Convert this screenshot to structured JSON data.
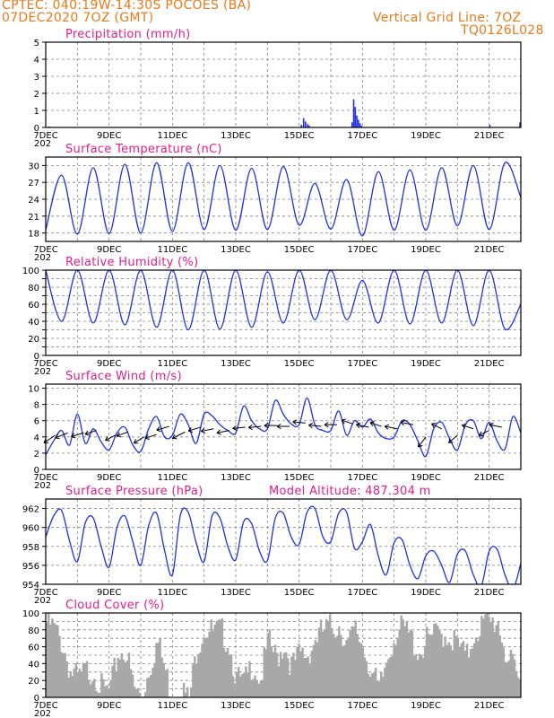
{
  "header": {
    "line1": "CPTEC:   040:19W-14:30S   POCOES (BA)",
    "line2": "07DEC2020 7OZ (GMT)",
    "right1": "Vertical Grid Line: 7OZ",
    "right2": "TQ0126L028"
  },
  "colors": {
    "header": "#e87a1a",
    "titles": "#e01e8c",
    "line": "#2030e0",
    "cloud": "#a8a8a8",
    "arrows": "#000000"
  },
  "x_labels": [
    "7DEC",
    "9DEC",
    "11DEC",
    "13DEC",
    "15DEC",
    "17DEC",
    "19DEC",
    "21DEC"
  ],
  "x_label_cut": "202",
  "chart_data": [
    {
      "type": "bar",
      "title": "Precipitation (mm/h)",
      "x_range": [
        0,
        15
      ],
      "ylim": [
        0,
        5
      ],
      "yticks": [
        0,
        1,
        2,
        3,
        4,
        5
      ],
      "grid": true,
      "bars": [
        {
          "x": 0.1,
          "v": 0.05
        },
        {
          "x": 8.05,
          "v": 0.15
        },
        {
          "x": 8.12,
          "v": 0.55
        },
        {
          "x": 8.18,
          "v": 0.35
        },
        {
          "x": 8.25,
          "v": 0.2
        },
        {
          "x": 8.3,
          "v": 0.1
        },
        {
          "x": 9.65,
          "v": 0.3
        },
        {
          "x": 9.7,
          "v": 1.65
        },
        {
          "x": 9.75,
          "v": 1.2
        },
        {
          "x": 9.8,
          "v": 0.7
        },
        {
          "x": 9.85,
          "v": 0.45
        },
        {
          "x": 9.9,
          "v": 0.25
        },
        {
          "x": 9.95,
          "v": 0.1
        },
        {
          "x": 14.0,
          "v": 0.15
        },
        {
          "x": 14.95,
          "v": 0.3
        }
      ]
    },
    {
      "type": "line",
      "title": "Surface Temperature (nC)",
      "x_range": [
        0,
        15
      ],
      "ylim": [
        16.5,
        31.5
      ],
      "yticks": [
        18,
        21,
        24,
        27,
        30
      ],
      "grid": true,
      "series": [
        {
          "x": [
            0,
            0.5,
            1.0,
            1.5,
            2.0,
            2.5,
            3.0,
            3.5,
            4.0,
            4.5,
            5.0,
            5.5,
            6.0,
            6.5,
            7.0,
            7.5,
            8.0,
            8.5,
            9.0,
            9.5,
            10.0,
            10.5,
            11.0,
            11.5,
            12.0,
            12.5,
            13.0,
            13.5,
            14.0,
            14.5,
            15.0
          ],
          "y": [
            18.5,
            28.3,
            17.8,
            29.6,
            17.9,
            30.2,
            18.0,
            30.5,
            18.3,
            30.5,
            18.6,
            30.0,
            18.5,
            29.5,
            18.6,
            29.8,
            19.4,
            26.8,
            18.7,
            27.5,
            17.5,
            28.9,
            18.5,
            29.2,
            18.5,
            29.6,
            19.3,
            30.0,
            18.6,
            30.5,
            24.3
          ]
        }
      ]
    },
    {
      "type": "line",
      "title": "Relative Humidity (%)",
      "x_range": [
        0,
        15
      ],
      "ylim": [
        0,
        100
      ],
      "yticks": [
        0,
        10,
        20,
        30,
        40,
        50,
        60,
        70,
        80,
        90,
        100
      ],
      "ytick_labels": [
        0,
        20,
        40,
        60,
        80,
        100
      ],
      "grid": true,
      "series": [
        {
          "x": [
            0,
            0.5,
            1.0,
            1.5,
            2.0,
            2.5,
            3.0,
            3.5,
            4.0,
            4.5,
            5.0,
            5.5,
            6.0,
            6.5,
            7.0,
            7.5,
            8.0,
            8.5,
            9.0,
            9.5,
            10.0,
            10.5,
            11.0,
            11.5,
            12.0,
            12.5,
            13.0,
            13.5,
            14.0,
            14.5,
            15.0
          ],
          "y": [
            100,
            40,
            100,
            38,
            100,
            36,
            100,
            33,
            100,
            30,
            100,
            31,
            100,
            33,
            98,
            38,
            100,
            42,
            100,
            42,
            88,
            38,
            100,
            37,
            100,
            38,
            100,
            35,
            100,
            31,
            60
          ]
        }
      ]
    },
    {
      "type": "line",
      "title": "Surface Wind (m/s)",
      "x_range": [
        0,
        15
      ],
      "ylim": [
        0,
        10.5
      ],
      "yticks": [
        0,
        2,
        4,
        6,
        8,
        10
      ],
      "grid": true,
      "series": [
        {
          "x": [
            0,
            0.25,
            0.5,
            0.75,
            1.0,
            1.25,
            1.5,
            1.75,
            2.0,
            2.25,
            2.5,
            2.75,
            3.0,
            3.25,
            3.5,
            3.75,
            4.0,
            4.25,
            4.5,
            4.75,
            5.0,
            5.25,
            5.5,
            5.75,
            6.0,
            6.25,
            6.5,
            6.75,
            7.0,
            7.25,
            7.5,
            7.75,
            8.0,
            8.25,
            8.5,
            8.75,
            9.0,
            9.25,
            9.5,
            9.75,
            10.0,
            10.25,
            10.5,
            10.75,
            11.0,
            11.25,
            11.5,
            11.75,
            12.0,
            12.25,
            12.5,
            12.75,
            13.0,
            13.25,
            13.5,
            13.75,
            14.0,
            14.25,
            14.5,
            14.75,
            15.0
          ],
          "y": [
            1.8,
            3.5,
            4.8,
            3.0,
            6.8,
            3.2,
            5.0,
            3.4,
            2.4,
            4.5,
            5.2,
            3.0,
            2.2,
            5.0,
            6.5,
            4.0,
            4.2,
            6.8,
            5.5,
            3.2,
            6.8,
            6.6,
            5.5,
            4.8,
            4.5,
            7.8,
            6.0,
            5.0,
            5.0,
            8.5,
            6.8,
            5.6,
            5.5,
            8.8,
            5.5,
            4.8,
            4.8,
            7.2,
            4.2,
            6.0,
            5.2,
            6.2,
            4.5,
            3.8,
            4.0,
            6.0,
            5.5,
            3.5,
            1.6,
            5.0,
            5.8,
            3.8,
            2.4,
            5.5,
            6.0,
            3.8,
            5.8,
            3.5,
            2.5,
            6.5,
            4.5
          ]
        }
      ],
      "vectors_note": "wind direction arrows along 4–6 m/s",
      "vectors": [
        {
          "x": 0.3,
          "y": 4.2,
          "u": -0.9,
          "v": -0.6
        },
        {
          "x": 0.7,
          "y": 4.5,
          "u": -1.0,
          "v": -0.4
        },
        {
          "x": 1.2,
          "y": 4.5,
          "u": -1.0,
          "v": -0.3
        },
        {
          "x": 1.6,
          "y": 4.8,
          "u": -0.9,
          "v": -0.3
        },
        {
          "x": 2.2,
          "y": 4.2,
          "u": -0.8,
          "v": -0.4
        },
        {
          "x": 2.6,
          "y": 4.6,
          "u": -0.9,
          "v": -0.3
        },
        {
          "x": 3.1,
          "y": 4.0,
          "u": -0.8,
          "v": -0.5
        },
        {
          "x": 3.5,
          "y": 4.3,
          "u": -0.9,
          "v": -0.3
        },
        {
          "x": 3.9,
          "y": 5.3,
          "u": -1.0,
          "v": -0.3
        },
        {
          "x": 4.4,
          "y": 4.6,
          "u": -1.0,
          "v": -0.5
        },
        {
          "x": 4.9,
          "y": 5.2,
          "u": -1.0,
          "v": -0.3
        },
        {
          "x": 5.3,
          "y": 5.0,
          "u": -1.0,
          "v": -0.2
        },
        {
          "x": 5.8,
          "y": 4.8,
          "u": -1.0,
          "v": -0.2
        },
        {
          "x": 6.3,
          "y": 5.2,
          "u": -1.0,
          "v": -0.1
        },
        {
          "x": 6.8,
          "y": 5.3,
          "u": -1.0,
          "v": -0.1
        },
        {
          "x": 7.3,
          "y": 5.4,
          "u": -1.0,
          "v": 0.0
        },
        {
          "x": 7.7,
          "y": 5.3,
          "u": -1.0,
          "v": 0.0
        },
        {
          "x": 8.2,
          "y": 5.7,
          "u": -1.0,
          "v": 0.1
        },
        {
          "x": 8.7,
          "y": 5.3,
          "u": -1.0,
          "v": 0.1
        },
        {
          "x": 9.2,
          "y": 5.5,
          "u": -1.0,
          "v": 0.0
        },
        {
          "x": 9.7,
          "y": 5.6,
          "u": -0.9,
          "v": 0.3
        },
        {
          "x": 10.2,
          "y": 5.2,
          "u": -1.0,
          "v": 0.2
        },
        {
          "x": 10.6,
          "y": 5.3,
          "u": -0.9,
          "v": 0.3
        },
        {
          "x": 11.1,
          "y": 5.0,
          "u": -1.0,
          "v": 0.2
        },
        {
          "x": 11.6,
          "y": 5.5,
          "u": -1.0,
          "v": 0.2
        },
        {
          "x": 12.0,
          "y": 4.0,
          "u": -0.6,
          "v": -0.8
        },
        {
          "x": 12.5,
          "y": 5.0,
          "u": -0.8,
          "v": 0.4
        },
        {
          "x": 13.0,
          "y": 4.2,
          "u": -0.7,
          "v": -0.6
        },
        {
          "x": 13.5,
          "y": 5.0,
          "u": -0.9,
          "v": 0.3
        },
        {
          "x": 14.0,
          "y": 4.8,
          "u": -0.8,
          "v": -0.4
        },
        {
          "x": 14.4,
          "y": 5.2,
          "u": -1.0,
          "v": 0.2
        }
      ]
    },
    {
      "type": "line",
      "title": "Surface Pressure (hPa)",
      "subtitle": "Model Altitude: 487.304 m",
      "x_range": [
        0,
        15
      ],
      "ylim": [
        954,
        963
      ],
      "yticks": [
        954,
        956,
        958,
        960,
        962
      ],
      "grid": true,
      "series": [
        {
          "x": [
            0,
            0.25,
            0.5,
            0.75,
            1.0,
            1.25,
            1.5,
            1.75,
            2.0,
            2.25,
            2.5,
            2.75,
            3.0,
            3.25,
            3.5,
            3.75,
            4.0,
            4.25,
            4.5,
            4.75,
            5.0,
            5.25,
            5.5,
            5.75,
            6.0,
            6.25,
            6.5,
            6.75,
            7.0,
            7.25,
            7.5,
            7.75,
            8.0,
            8.25,
            8.5,
            8.75,
            9.0,
            9.25,
            9.5,
            9.75,
            10.0,
            10.25,
            10.5,
            10.75,
            11.0,
            11.25,
            11.5,
            11.75,
            12.0,
            12.25,
            12.5,
            12.75,
            13.0,
            13.25,
            13.5,
            13.75,
            14.0,
            14.25,
            14.5,
            14.75,
            15.0
          ],
          "y": [
            959.0,
            961.2,
            961.8,
            958.6,
            956.4,
            960.5,
            961.0,
            958.0,
            955.8,
            960.0,
            961.2,
            958.5,
            956.0,
            960.2,
            961.5,
            957.6,
            955.0,
            961.3,
            961.6,
            958.4,
            956.4,
            961.2,
            961.0,
            958.0,
            956.6,
            960.6,
            960.4,
            957.5,
            956.5,
            961.0,
            961.5,
            959.0,
            958.2,
            961.6,
            962.0,
            959.0,
            958.5,
            961.5,
            961.6,
            957.8,
            958.5,
            960.3,
            957.0,
            955.0,
            958.4,
            958.7,
            956.0,
            954.6,
            957.0,
            957.5,
            956.0,
            954.2,
            957.2,
            957.5,
            955.0,
            953.8,
            957.5,
            957.7,
            955.0,
            953.5,
            956.2
          ]
        }
      ]
    },
    {
      "type": "area",
      "title": "Cloud Cover (%)",
      "x_range": [
        0,
        15
      ],
      "ylim": [
        0,
        100
      ],
      "yticks": [
        0,
        10,
        20,
        30,
        40,
        50,
        60,
        70,
        80,
        90,
        100
      ],
      "ytick_labels": [
        0,
        20,
        40,
        60,
        80,
        100
      ],
      "grid": true,
      "series": [
        {
          "x": [
            0,
            0.25,
            0.5,
            0.75,
            1.0,
            1.25,
            1.5,
            1.75,
            2.0,
            2.25,
            2.5,
            2.75,
            3.0,
            3.25,
            3.5,
            3.75,
            4.0,
            4.25,
            4.5,
            4.75,
            5.0,
            5.25,
            5.5,
            5.75,
            6.0,
            6.25,
            6.5,
            6.75,
            7.0,
            7.25,
            7.5,
            7.75,
            8.0,
            8.25,
            8.5,
            8.75,
            9.0,
            9.25,
            9.5,
            9.75,
            10.0,
            10.25,
            10.5,
            10.75,
            11.0,
            11.25,
            11.5,
            11.75,
            12.0,
            12.25,
            12.5,
            12.75,
            13.0,
            13.25,
            13.5,
            13.75,
            14.0,
            14.25,
            14.5,
            14.75,
            15.0
          ],
          "y": [
            98,
            90,
            72,
            40,
            30,
            40,
            40,
            18,
            15,
            60,
            65,
            20,
            10,
            45,
            75,
            40,
            5,
            20,
            5,
            70,
            92,
            85,
            88,
            75,
            30,
            25,
            50,
            30,
            75,
            55,
            72,
            45,
            60,
            60,
            80,
            88,
            92,
            95,
            70,
            88,
            70,
            40,
            15,
            55,
            85,
            90,
            80,
            62,
            75,
            82,
            85,
            80,
            70,
            55,
            85,
            95,
            96,
            100,
            60,
            40,
            20
          ]
        }
      ]
    }
  ]
}
